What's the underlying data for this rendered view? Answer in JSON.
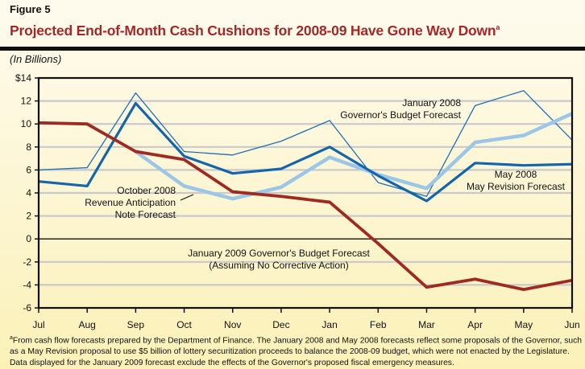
{
  "figure_label": "Figure 5",
  "title": "Projected End-of-Month Cash Cushions for 2008-09 Have Gone Way Down",
  "title_footnote_mark": "a",
  "unit_label": "(In Billions)",
  "footnote": {
    "mark": "a",
    "text": "From cash flow forecasts prepared by the Department of Finance. The January 2008 and May 2008 forecasts reflect some proposals of the Governor, such as a May Revision proposal to use $5 billion of lottery securitization proceeds to balance the 2008-09 budget, which were not enacted by the Legislature. Data displayed for the January 2009 forecast exclude the effects of the Governor's proposed fiscal emergency measures."
  },
  "chart_data": {
    "type": "line",
    "categories": [
      "Jul",
      "Aug",
      "Sep",
      "Oct",
      "Nov",
      "Dec",
      "Jan",
      "Feb",
      "Mar",
      "Apr",
      "May",
      "Jun"
    ],
    "ylim": [
      -6,
      14
    ],
    "yticks": [
      -6,
      -4,
      -2,
      0,
      2,
      4,
      6,
      8,
      10,
      12,
      14
    ],
    "ytick_labels": [
      "-6",
      "-4",
      "-2",
      "0",
      "2",
      "4",
      "6",
      "8",
      "10",
      "12",
      "$14"
    ],
    "grid": true,
    "series": [
      {
        "name": "January 2008 Governor's Budget Forecast",
        "label_lines": [
          "January 2008",
          "Governor's Budget Forecast"
        ],
        "color": "#1f6fb5",
        "width": 1.3,
        "values": [
          6.0,
          6.2,
          12.7,
          7.6,
          7.3,
          8.5,
          10.3,
          4.9,
          3.7,
          11.6,
          12.9,
          8.6
        ]
      },
      {
        "name": "October 2008 Revenue Anticipation Note Forecast",
        "label_lines": [
          "October 2008",
          "Revenue Anticipation",
          "Note Forecast"
        ],
        "color": "#9cc6e8",
        "width": 4.5,
        "values": [
          null,
          null,
          7.6,
          4.6,
          3.5,
          4.5,
          7.1,
          5.6,
          4.4,
          8.4,
          9.0,
          10.9
        ]
      },
      {
        "name": "May 2008 May Revision Forecast",
        "label_lines": [
          "May 2008",
          "May Revision Forecast"
        ],
        "color": "#1565ad",
        "width": 3.2,
        "values": [
          5.0,
          4.6,
          11.8,
          7.2,
          5.7,
          6.1,
          8.0,
          5.5,
          3.3,
          6.6,
          6.4,
          6.5
        ]
      },
      {
        "name": "January 2009 Governor's Budget Forecast (Assuming No Corrective Action)",
        "label_lines": [
          "January 2009 Governor's Budget Forecast",
          "(Assuming No Corrective Action)"
        ],
        "color": "#9e2a22",
        "width": 3.8,
        "values": [
          10.1,
          10.0,
          7.6,
          6.9,
          4.1,
          3.7,
          3.2,
          -0.4,
          -4.2,
          -3.5,
          -4.4,
          -3.6
        ]
      }
    ]
  }
}
